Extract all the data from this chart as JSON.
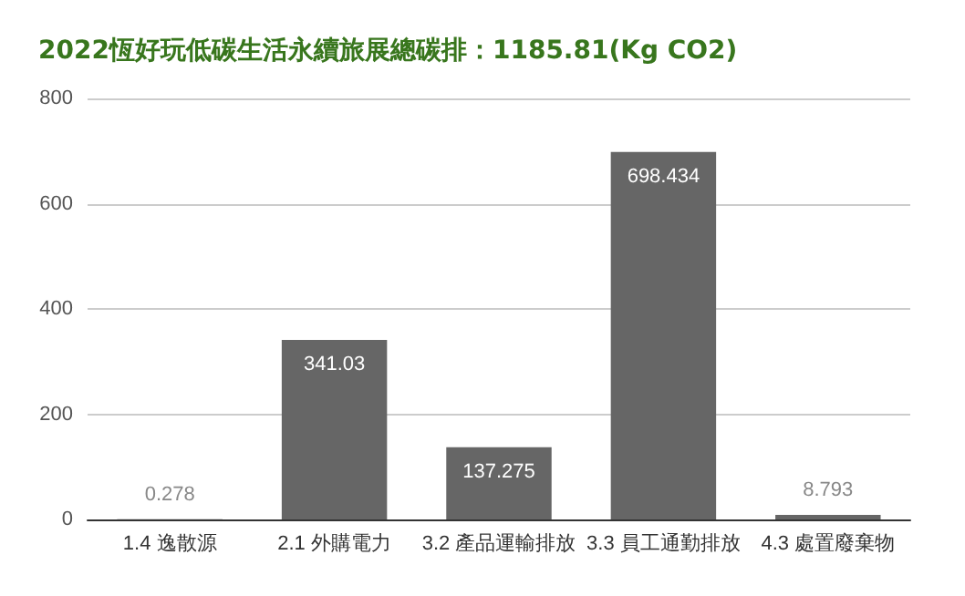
{
  "chart_data": {
    "type": "bar",
    "title": "2022恆好玩低碳生活永續旅展總碳排：1185.81(Kg CO2)",
    "categories": [
      "1.4 逸散源",
      "2.1 外購電力",
      "3.2 產品運輸排放",
      "3.3 員工通勤排放",
      "4.3 處置廢棄物"
    ],
    "values": [
      0.278,
      341.03,
      137.275,
      698.434,
      8.793
    ],
    "color": "#666666",
    "ylim": [
      0,
      800
    ],
    "yticks": [
      0,
      200,
      400,
      600,
      800
    ],
    "grid": "y",
    "data_labels": true
  }
}
